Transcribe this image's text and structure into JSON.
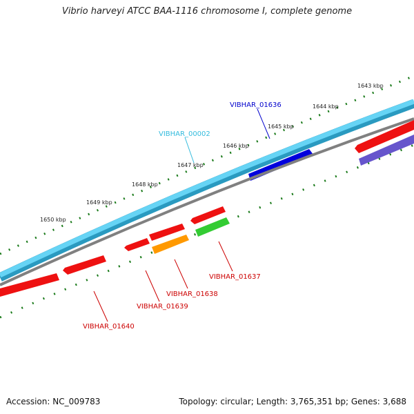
{
  "title": "Vibrio harveyi ATCC BAA-1116 chromosome I, complete genome",
  "footer": {
    "accession": "Accession: NC_009783",
    "summary": "Topology: circular; Length: 3,765,351 bp; Genes: 3,688"
  },
  "ruler_labels": [
    "1643 kbp",
    "1644 kbp",
    "1645 kbp",
    "1646 kbp",
    "1647 kbp",
    "1648 kbp",
    "1649 kbp",
    "1650 kbp"
  ],
  "gene_labels": [
    {
      "text": "VIBHAR_01636",
      "color": "#0000cc"
    },
    {
      "text": "VIBHAR_00002",
      "color": "#33bbdd"
    },
    {
      "text": "VIBHAR_01637",
      "color": "#cc0000"
    },
    {
      "text": "VIBHAR_01638",
      "color": "#cc0000"
    },
    {
      "text": "VIBHAR_01639",
      "color": "#cc0000"
    },
    {
      "text": "VIBHAR_01640",
      "color": "#cc0000"
    }
  ],
  "colors": {
    "outer_ruler": "#1a7a1a",
    "inner_ruler": "#1a7a1a",
    "backbone_cyan": "#55ccf0",
    "backbone_grey": "#808080",
    "highlight_blue": "#0000dd",
    "gene_red": "#ee1111",
    "gene_green": "#33cc33",
    "gene_orange": "#ff9900",
    "gene_purple": "#6655cc"
  }
}
